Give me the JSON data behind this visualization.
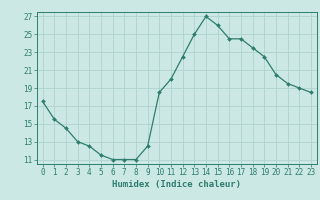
{
  "x": [
    0,
    1,
    2,
    3,
    4,
    5,
    6,
    7,
    8,
    9,
    10,
    11,
    12,
    13,
    14,
    15,
    16,
    17,
    18,
    19,
    20,
    21,
    22,
    23
  ],
  "y": [
    17.5,
    15.5,
    14.5,
    13.0,
    12.5,
    11.5,
    11.0,
    11.0,
    11.0,
    12.5,
    18.5,
    20.0,
    22.5,
    25.0,
    27.0,
    26.0,
    24.5,
    24.5,
    23.5,
    22.5,
    20.5,
    19.5,
    19.0,
    18.5
  ],
  "line_color": "#2e7d6e",
  "marker": "D",
  "marker_size": 2.0,
  "bg_color": "#cce8e4",
  "grid_color": "#aacfcb",
  "xlabel": "Humidex (Indice chaleur)",
  "xlim": [
    -0.5,
    23.5
  ],
  "ylim": [
    10.5,
    27.5
  ],
  "yticks": [
    11,
    13,
    15,
    17,
    19,
    21,
    23,
    25,
    27
  ],
  "xticks": [
    0,
    1,
    2,
    3,
    4,
    5,
    6,
    7,
    8,
    9,
    10,
    11,
    12,
    13,
    14,
    15,
    16,
    17,
    18,
    19,
    20,
    21,
    22,
    23
  ],
  "xtick_labels": [
    "0",
    "1",
    "2",
    "3",
    "4",
    "5",
    "6",
    "7",
    "8",
    "9",
    "10",
    "11",
    "12",
    "13",
    "14",
    "15",
    "16",
    "17",
    "18",
    "19",
    "20",
    "21",
    "22",
    "23"
  ],
  "tick_color": "#2e7d6e",
  "axis_color": "#2e7d6e",
  "label_fontsize": 6.5,
  "tick_fontsize": 5.5
}
